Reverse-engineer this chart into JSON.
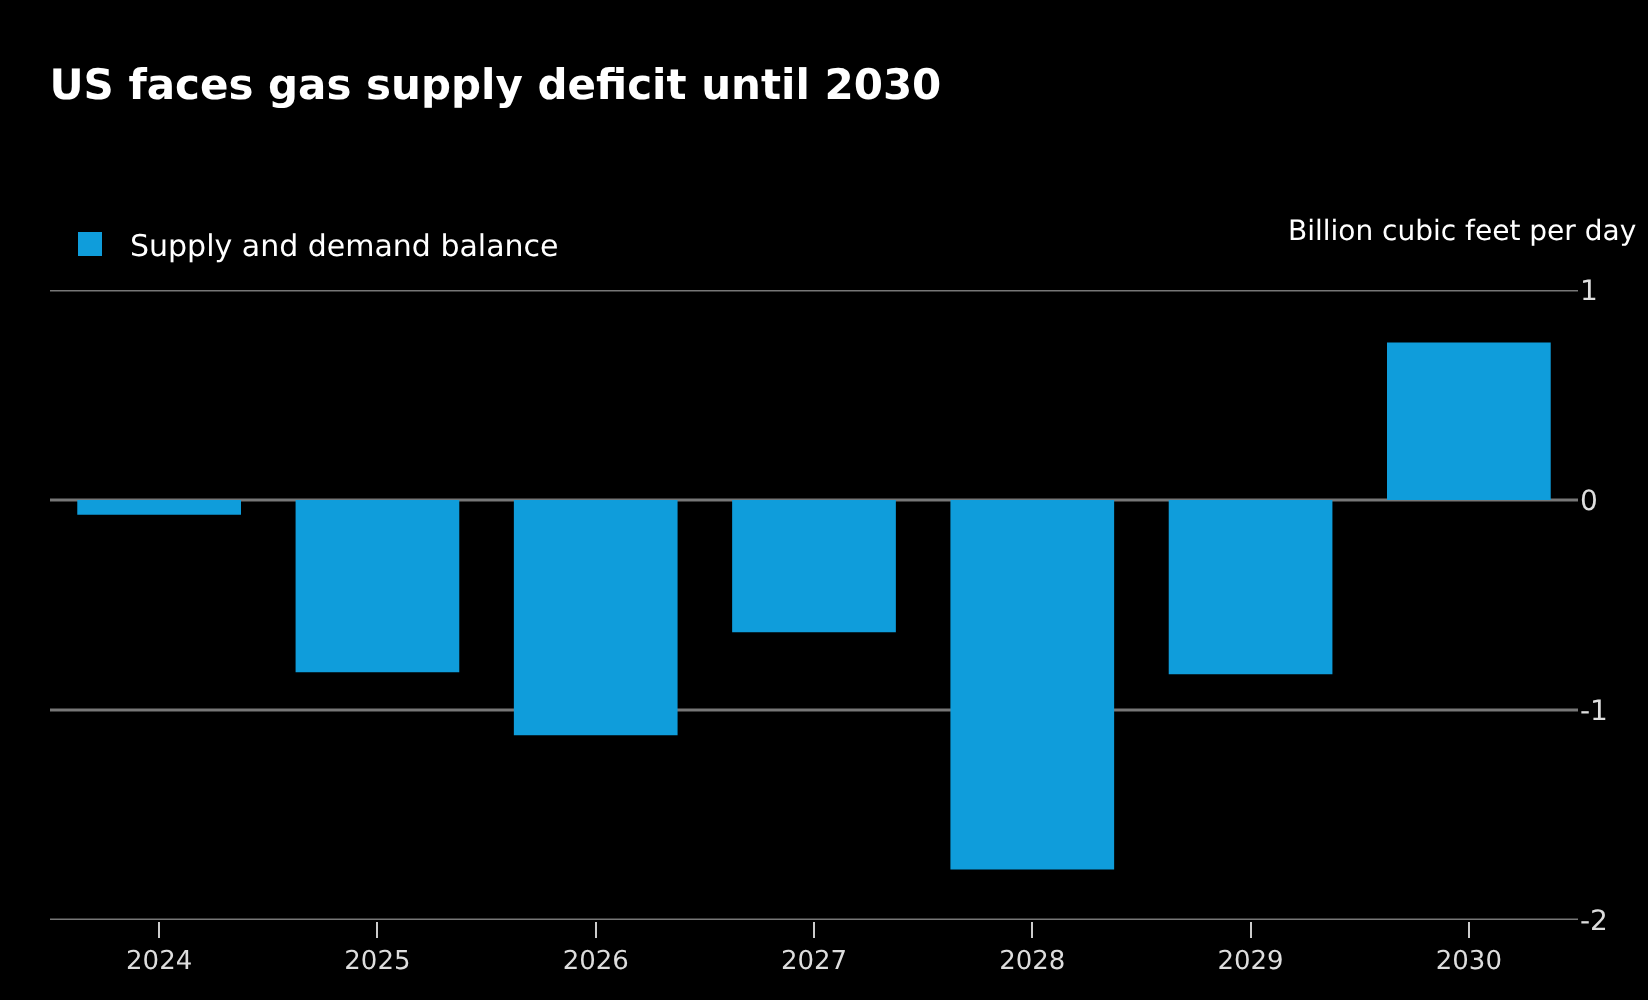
{
  "chart_data": {
    "type": "bar",
    "title": "US faces gas supply deficit until 2030",
    "ylabel": "Billion cubic feet per day",
    "categories": [
      "2024",
      "2025",
      "2026",
      "2027",
      "2028",
      "2029",
      "2030"
    ],
    "series": [
      {
        "name": "Supply and demand balance",
        "color": "#0f9ddb",
        "values": [
          -0.07,
          -0.82,
          -1.12,
          -0.63,
          -1.76,
          -0.83,
          0.75
        ]
      }
    ],
    "ylim": [
      -2,
      1
    ],
    "yticks": [
      -2,
      -1,
      0,
      1
    ],
    "grid": "y",
    "legend": "top left"
  }
}
